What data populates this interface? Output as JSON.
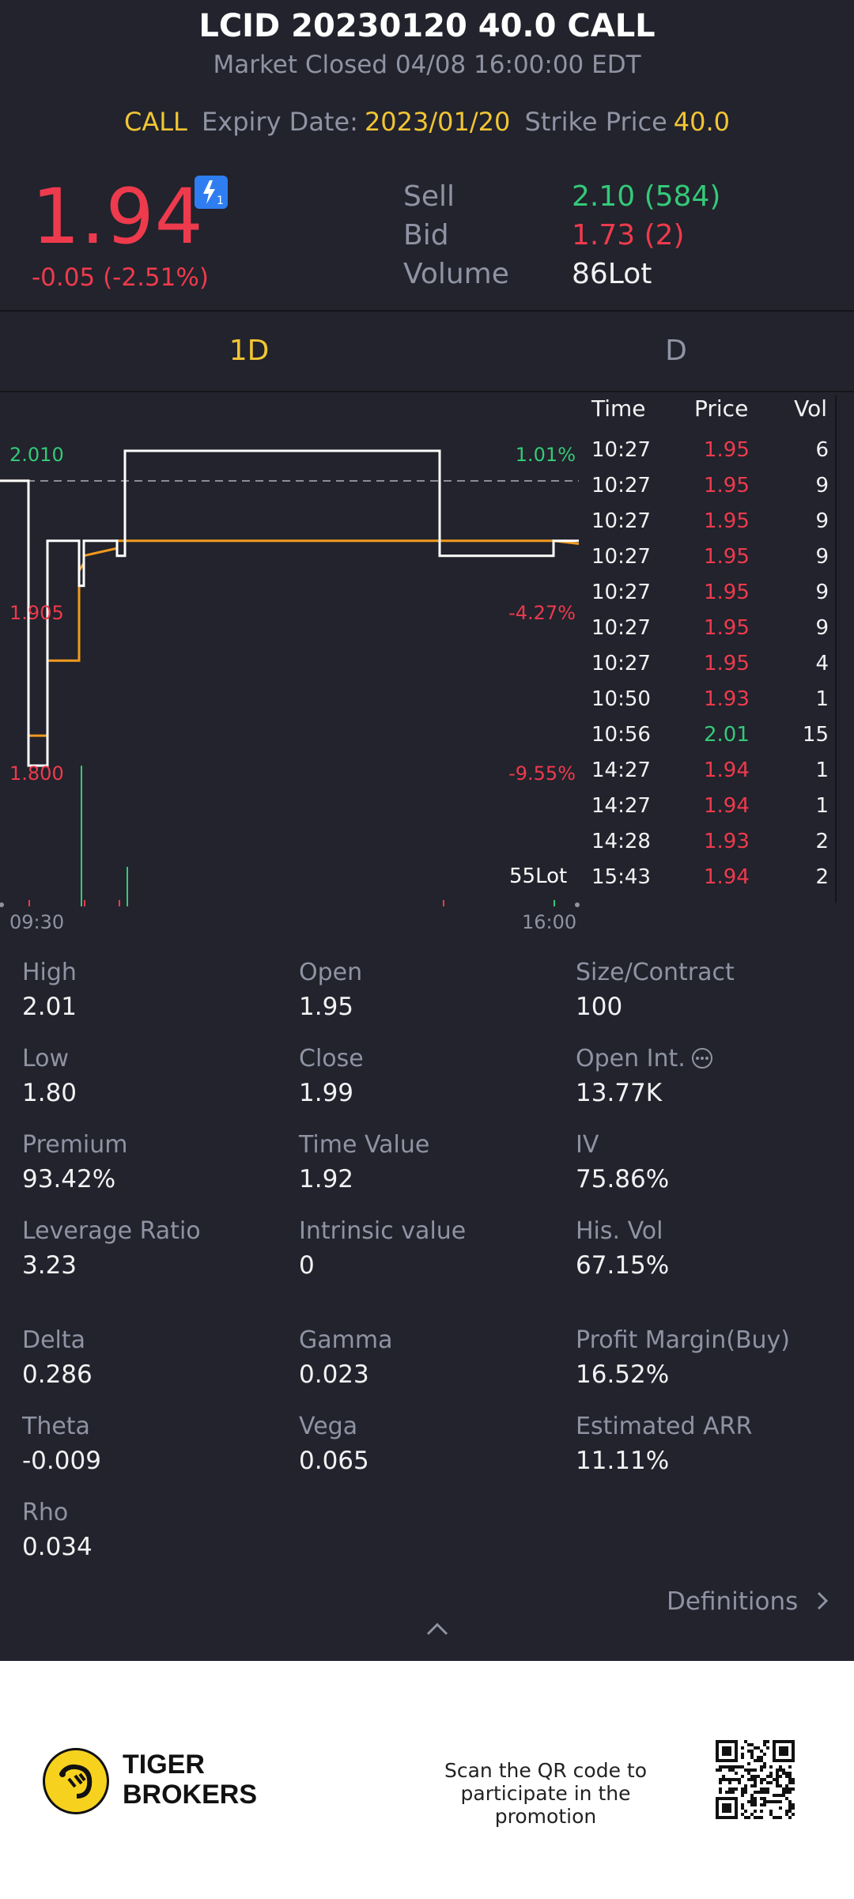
{
  "header": {
    "title": "LCID 20230120 40.0 CALL",
    "subtitle": "Market Closed 04/08 16:00:00 EDT",
    "type": "CALL",
    "expiry_label": "Expiry Date:",
    "expiry_value": "2023/01/20",
    "strike_label": "Strike Price",
    "strike_value": "40.0"
  },
  "quote": {
    "last_price": "1.94",
    "change": "-0.05 (-2.51%)",
    "sell_label": "Sell",
    "sell_value": "2.10 (584)",
    "bid_label": "Bid",
    "bid_value": "1.73 (2)",
    "volume_label": "Volume",
    "volume_value": "86Lot",
    "badge_icon": "lightning-1-icon"
  },
  "tabs": [
    "1D",
    "D"
  ],
  "chart": {
    "y_top": "2.010",
    "y_mid": "1.905",
    "y_low": "1.800",
    "pct_top": "1.01%",
    "pct_mid": "-4.27%",
    "pct_low": "-9.55%",
    "vol_label": "55Lot",
    "x_start": "09:30",
    "x_end": "16:00"
  },
  "chart_data": {
    "type": "line",
    "y_range": [
      1.8,
      2.01
    ],
    "prev_close": 1.99,
    "series": [
      {
        "values": [
          1.99,
          1.99,
          1.8,
          1.8,
          1.95,
          1.95,
          1.92,
          1.92,
          1.95,
          1.95,
          1.94,
          1.94,
          2.01,
          2.01,
          2.01,
          2.01,
          1.94,
          1.94,
          1.94,
          1.95,
          1.95
        ]
      },
      {
        "values": [
          1.99,
          1.99,
          1.82,
          1.82,
          1.87,
          1.87,
          1.93,
          1.935,
          1.94,
          1.945,
          1.95,
          1.95,
          1.95,
          1.95,
          1.95,
          1.95,
          1.95,
          1.95,
          1.95,
          1.95,
          1.948
        ]
      }
    ]
  },
  "trades": {
    "headers": [
      "Time",
      "Price",
      "Vol"
    ],
    "rows": [
      {
        "time": "10:27",
        "price": "1.95",
        "vol": "6",
        "dir": "down"
      },
      {
        "time": "10:27",
        "price": "1.95",
        "vol": "9",
        "dir": "down"
      },
      {
        "time": "10:27",
        "price": "1.95",
        "vol": "9",
        "dir": "down"
      },
      {
        "time": "10:27",
        "price": "1.95",
        "vol": "9",
        "dir": "down"
      },
      {
        "time": "10:27",
        "price": "1.95",
        "vol": "9",
        "dir": "down"
      },
      {
        "time": "10:27",
        "price": "1.95",
        "vol": "9",
        "dir": "down"
      },
      {
        "time": "10:27",
        "price": "1.95",
        "vol": "4",
        "dir": "down"
      },
      {
        "time": "10:50",
        "price": "1.93",
        "vol": "1",
        "dir": "down"
      },
      {
        "time": "10:56",
        "price": "2.01",
        "vol": "15",
        "dir": "up"
      },
      {
        "time": "14:27",
        "price": "1.94",
        "vol": "1",
        "dir": "down"
      },
      {
        "time": "14:27",
        "price": "1.94",
        "vol": "1",
        "dir": "down"
      },
      {
        "time": "14:28",
        "price": "1.93",
        "vol": "2",
        "dir": "down"
      },
      {
        "time": "15:43",
        "price": "1.94",
        "vol": "2",
        "dir": "down"
      }
    ]
  },
  "stats": [
    {
      "label": "High",
      "value": "2.01"
    },
    {
      "label": "Open",
      "value": "1.95"
    },
    {
      "label": "Size/Contract",
      "value": "100"
    },
    {
      "label": "Low",
      "value": "1.80"
    },
    {
      "label": "Close",
      "value": "1.99"
    },
    {
      "label": "Open Int.",
      "value": "13.77K"
    },
    {
      "label": "Premium",
      "value": "93.42%"
    },
    {
      "label": "Time Value",
      "value": "1.92"
    },
    {
      "label": "IV",
      "value": "75.86%"
    },
    {
      "label": "Leverage Ratio",
      "value": "3.23"
    },
    {
      "label": "Intrinsic value",
      "value": "0"
    },
    {
      "label": "His. Vol",
      "value": "67.15%"
    },
    {
      "label": "Delta",
      "value": "0.286"
    },
    {
      "label": "Gamma",
      "value": "0.023"
    },
    {
      "label": "Profit Margin(Buy)",
      "value": "16.52%"
    },
    {
      "label": "Theta",
      "value": "-0.009"
    },
    {
      "label": "Vega",
      "value": "0.065"
    },
    {
      "label": "Estimated ARR",
      "value": "11.11%"
    },
    {
      "label": "Rho",
      "value": "0.034"
    }
  ],
  "definitions_label": "Definitions",
  "footer": {
    "brand_line1": "TIGER",
    "brand_line2": "BROKERS",
    "promo_line1": "Scan the QR code to",
    "promo_line2": "participate in the promotion"
  },
  "colors": {
    "up": "#34c978",
    "down": "#ee3a4d",
    "accent": "#f2c534",
    "bg": "#22232c"
  }
}
